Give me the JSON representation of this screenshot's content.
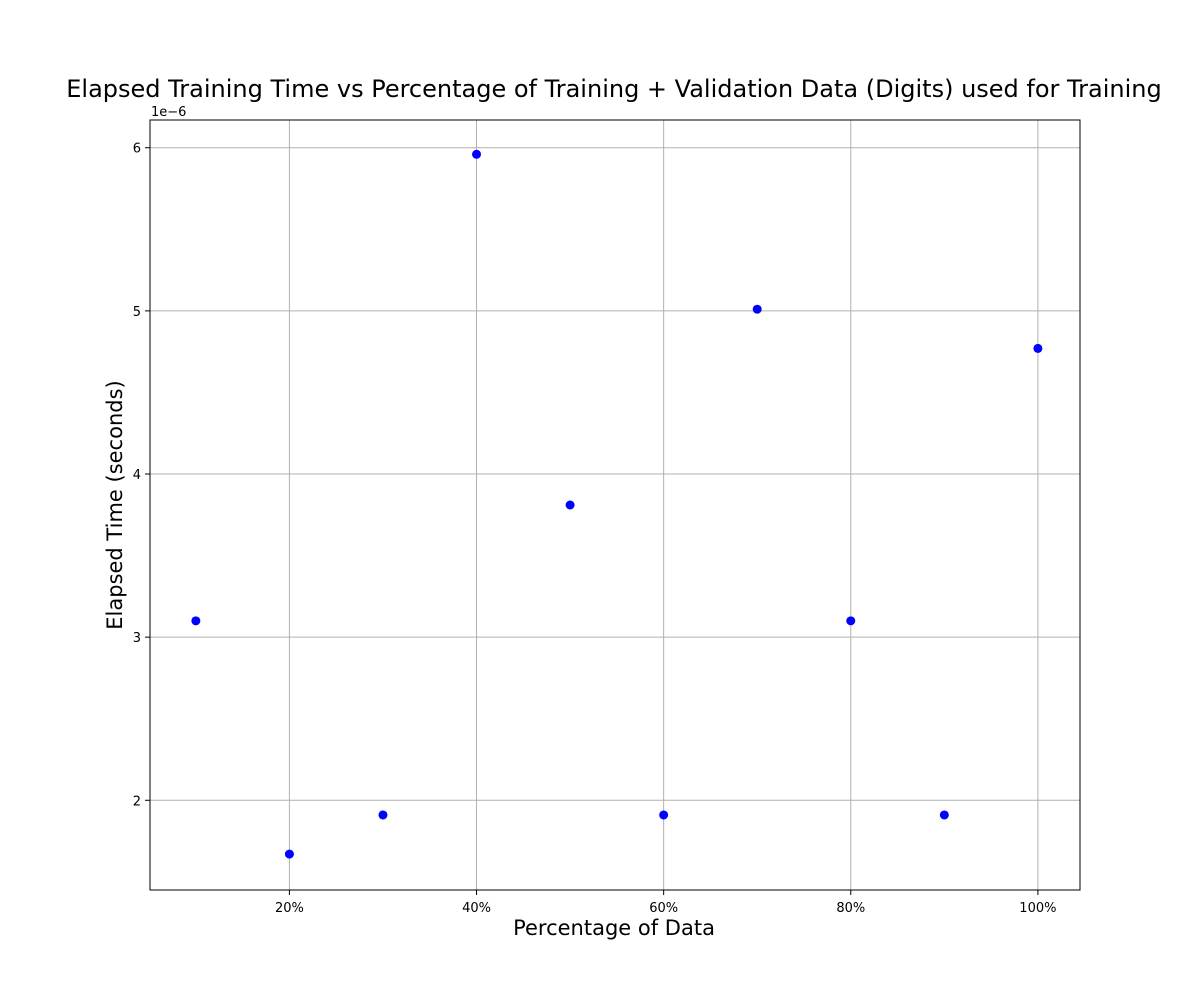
{
  "chart_data": {
    "type": "scatter",
    "title": "Elapsed Training Time vs Percentage of Training + Validation Data (Digits) used for Training",
    "xlabel": "Percentage of Data",
    "ylabel": "Elapsed Time (seconds)",
    "y_offset_label": "1e−6",
    "x": [
      10,
      20,
      30,
      40,
      50,
      60,
      70,
      80,
      90,
      100
    ],
    "y": [
      3.1e-06,
      1.67e-06,
      1.91e-06,
      5.96e-06,
      3.81e-06,
      1.91e-06,
      5.01e-06,
      3.1e-06,
      1.91e-06,
      4.77e-06
    ],
    "xlim": [
      5.1,
      104.5
    ],
    "ylim": [
      1.45e-06,
      6.17e-06
    ],
    "x_ticks": [
      20,
      40,
      60,
      80,
      100
    ],
    "x_tick_labels": [
      "20%",
      "40%",
      "60%",
      "80%",
      "100%"
    ],
    "y_ticks": [
      2e-06,
      3e-06,
      4e-06,
      5e-06,
      6e-06
    ],
    "y_tick_labels": [
      "2",
      "3",
      "4",
      "5",
      "6"
    ],
    "grid": true,
    "legend": "none",
    "point_color": "#0000ff"
  }
}
